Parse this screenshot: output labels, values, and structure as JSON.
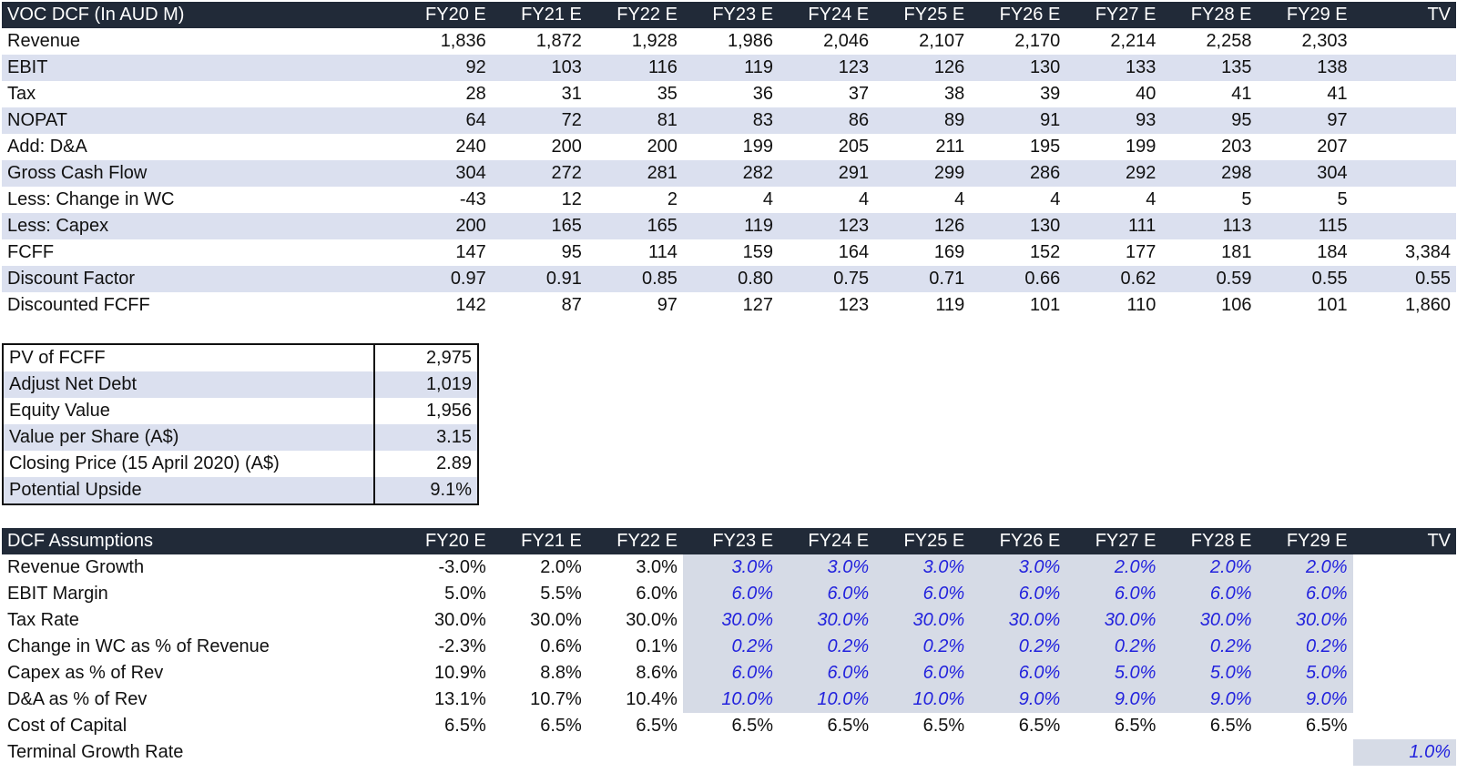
{
  "dcf": {
    "title": "VOC DCF (In AUD M)",
    "columns": [
      "FY20 E",
      "FY21 E",
      "FY22 E",
      "FY23 E",
      "FY24 E",
      "FY25 E",
      "FY26 E",
      "FY27 E",
      "FY28 E",
      "FY29 E",
      "TV"
    ],
    "rows": [
      {
        "label": "Revenue",
        "values": [
          "1,836",
          "1,872",
          "1,928",
          "1,986",
          "2,046",
          "2,107",
          "2,170",
          "2,214",
          "2,258",
          "2,303",
          ""
        ]
      },
      {
        "label": "EBIT",
        "values": [
          "92",
          "103",
          "116",
          "119",
          "123",
          "126",
          "130",
          "133",
          "135",
          "138",
          ""
        ]
      },
      {
        "label": "Tax",
        "values": [
          "28",
          "31",
          "35",
          "36",
          "37",
          "38",
          "39",
          "40",
          "41",
          "41",
          ""
        ]
      },
      {
        "label": "NOPAT",
        "values": [
          "64",
          "72",
          "81",
          "83",
          "86",
          "89",
          "91",
          "93",
          "95",
          "97",
          ""
        ]
      },
      {
        "label": "Add: D&A",
        "values": [
          "240",
          "200",
          "200",
          "199",
          "205",
          "211",
          "195",
          "199",
          "203",
          "207",
          ""
        ]
      },
      {
        "label": "Gross Cash Flow",
        "values": [
          "304",
          "272",
          "281",
          "282",
          "291",
          "299",
          "286",
          "292",
          "298",
          "304",
          ""
        ]
      },
      {
        "label": "Less: Change in WC",
        "values": [
          "-43",
          "12",
          "2",
          "4",
          "4",
          "4",
          "4",
          "4",
          "5",
          "5",
          ""
        ]
      },
      {
        "label": "Less: Capex",
        "values": [
          "200",
          "165",
          "165",
          "119",
          "123",
          "126",
          "130",
          "111",
          "113",
          "115",
          ""
        ]
      },
      {
        "label": "FCFF",
        "values": [
          "147",
          "95",
          "114",
          "159",
          "164",
          "169",
          "152",
          "177",
          "181",
          "184",
          "3,384"
        ]
      },
      {
        "label": "Discount Factor",
        "values": [
          "0.97",
          "0.91",
          "0.85",
          "0.80",
          "0.75",
          "0.71",
          "0.66",
          "0.62",
          "0.59",
          "0.55",
          "0.55"
        ]
      },
      {
        "label": "Discounted FCFF",
        "values": [
          "142",
          "87",
          "97",
          "127",
          "123",
          "119",
          "101",
          "110",
          "106",
          "101",
          "1,860"
        ]
      }
    ]
  },
  "summary": {
    "rows": [
      {
        "label": "PV of FCFF",
        "value": "2,975"
      },
      {
        "label": "Adjust Net Debt",
        "value": "1,019"
      },
      {
        "label": "Equity Value",
        "value": "1,956"
      },
      {
        "label": "Value per Share (A$)",
        "value": "3.15"
      },
      {
        "label": "Closing Price (15 April 2020) (A$)",
        "value": "2.89"
      },
      {
        "label": "Potential Upside",
        "value": "9.1%"
      }
    ]
  },
  "assumptions": {
    "title": "DCF Assumptions",
    "columns": [
      "FY20 E",
      "FY21 E",
      "FY22 E",
      "FY23 E",
      "FY24 E",
      "FY25 E",
      "FY26 E",
      "FY27 E",
      "FY28 E",
      "FY29 E",
      "TV"
    ],
    "rows": [
      {
        "label": "Revenue Growth",
        "values": [
          "-3.0%",
          "2.0%",
          "3.0%",
          "3.0%",
          "3.0%",
          "3.0%",
          "3.0%",
          "2.0%",
          "2.0%",
          "2.0%",
          ""
        ],
        "input_from": 3
      },
      {
        "label": "EBIT Margin",
        "values": [
          "5.0%",
          "5.5%",
          "6.0%",
          "6.0%",
          "6.0%",
          "6.0%",
          "6.0%",
          "6.0%",
          "6.0%",
          "6.0%",
          ""
        ],
        "input_from": 3
      },
      {
        "label": "Tax Rate",
        "values": [
          "30.0%",
          "30.0%",
          "30.0%",
          "30.0%",
          "30.0%",
          "30.0%",
          "30.0%",
          "30.0%",
          "30.0%",
          "30.0%",
          ""
        ],
        "input_from": 3
      },
      {
        "label": "Change in WC as % of Revenue",
        "values": [
          "-2.3%",
          "0.6%",
          "0.1%",
          "0.2%",
          "0.2%",
          "0.2%",
          "0.2%",
          "0.2%",
          "0.2%",
          "0.2%",
          ""
        ],
        "input_from": 3
      },
      {
        "label": "Capex as % of Rev",
        "values": [
          "10.9%",
          "8.8%",
          "8.6%",
          "6.0%",
          "6.0%",
          "6.0%",
          "6.0%",
          "5.0%",
          "5.0%",
          "5.0%",
          ""
        ],
        "input_from": 3
      },
      {
        "label": "D&A as % of Rev",
        "values": [
          "13.1%",
          "10.7%",
          "10.4%",
          "10.0%",
          "10.0%",
          "10.0%",
          "9.0%",
          "9.0%",
          "9.0%",
          "9.0%",
          ""
        ],
        "input_from": 3
      },
      {
        "label": "Cost of Capital",
        "values": [
          "6.5%",
          "6.5%",
          "6.5%",
          "6.5%",
          "6.5%",
          "6.5%",
          "6.5%",
          "6.5%",
          "6.5%",
          "6.5%",
          ""
        ],
        "input_from": -1
      },
      {
        "label": "Terminal Growth Rate",
        "values": [
          "",
          "",
          "",
          "",
          "",
          "",
          "",
          "",
          "",
          "",
          "1.0%"
        ],
        "input_from": 10
      }
    ]
  },
  "colors": {
    "header_bg": "#212a38",
    "band_bg": "#dbe0ef",
    "input_bg": "#d6dbe6",
    "input_text": "#2222dd"
  }
}
